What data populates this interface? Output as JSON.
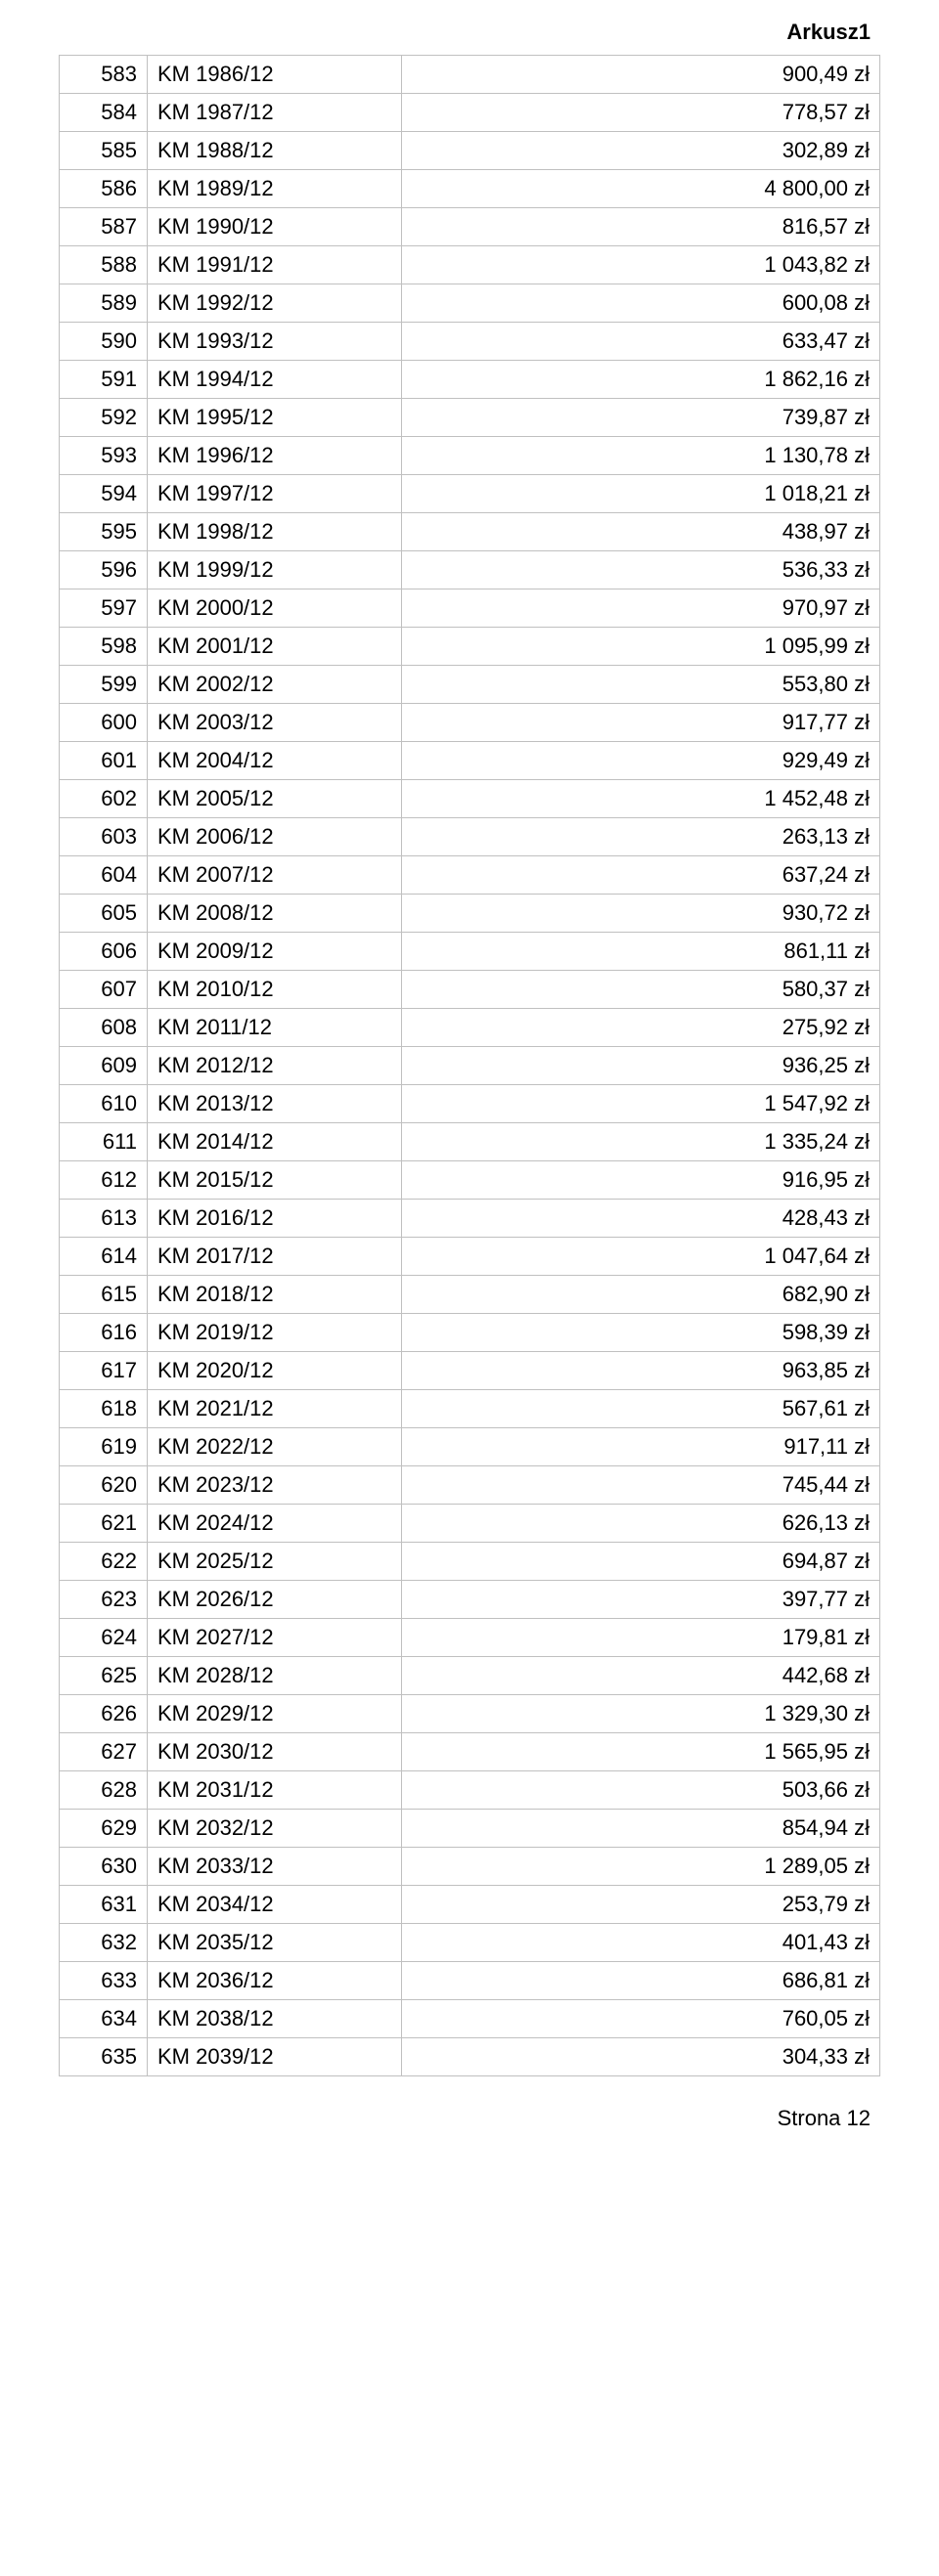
{
  "header_title": "Arkusz1",
  "footer_text": "Strona 12",
  "colors": {
    "text": "#000000",
    "border": "#c0c0c0",
    "background": "#ffffff"
  },
  "fontsize": 22,
  "columns": [
    "index",
    "code",
    "amount"
  ],
  "rows": [
    [
      "583",
      "KM 1986/12",
      "900,49 zł"
    ],
    [
      "584",
      "KM 1987/12",
      "778,57 zł"
    ],
    [
      "585",
      "KM 1988/12",
      "302,89 zł"
    ],
    [
      "586",
      "KM 1989/12",
      "4 800,00 zł"
    ],
    [
      "587",
      "KM 1990/12",
      "816,57 zł"
    ],
    [
      "588",
      "KM 1991/12",
      "1 043,82 zł"
    ],
    [
      "589",
      "KM 1992/12",
      "600,08 zł"
    ],
    [
      "590",
      "KM 1993/12",
      "633,47 zł"
    ],
    [
      "591",
      "KM 1994/12",
      "1 862,16 zł"
    ],
    [
      "592",
      "KM 1995/12",
      "739,87 zł"
    ],
    [
      "593",
      "KM 1996/12",
      "1 130,78 zł"
    ],
    [
      "594",
      "KM 1997/12",
      "1 018,21 zł"
    ],
    [
      "595",
      "KM 1998/12",
      "438,97 zł"
    ],
    [
      "596",
      "KM 1999/12",
      "536,33 zł"
    ],
    [
      "597",
      "KM 2000/12",
      "970,97 zł"
    ],
    [
      "598",
      "KM 2001/12",
      "1 095,99 zł"
    ],
    [
      "599",
      "KM 2002/12",
      "553,80 zł"
    ],
    [
      "600",
      "KM 2003/12",
      "917,77 zł"
    ],
    [
      "601",
      "KM 2004/12",
      "929,49 zł"
    ],
    [
      "602",
      "KM 2005/12",
      "1 452,48 zł"
    ],
    [
      "603",
      "KM 2006/12",
      "263,13 zł"
    ],
    [
      "604",
      "KM 2007/12",
      "637,24 zł"
    ],
    [
      "605",
      "KM 2008/12",
      "930,72 zł"
    ],
    [
      "606",
      "KM 2009/12",
      "861,11 zł"
    ],
    [
      "607",
      "KM 2010/12",
      "580,37 zł"
    ],
    [
      "608",
      "KM 2011/12",
      "275,92 zł"
    ],
    [
      "609",
      "KM 2012/12",
      "936,25 zł"
    ],
    [
      "610",
      "KM 2013/12",
      "1 547,92 zł"
    ],
    [
      "611",
      "KM 2014/12",
      "1 335,24 zł"
    ],
    [
      "612",
      "KM 2015/12",
      "916,95 zł"
    ],
    [
      "613",
      "KM 2016/12",
      "428,43 zł"
    ],
    [
      "614",
      "KM 2017/12",
      "1 047,64 zł"
    ],
    [
      "615",
      "KM 2018/12",
      "682,90 zł"
    ],
    [
      "616",
      "KM 2019/12",
      "598,39 zł"
    ],
    [
      "617",
      "KM 2020/12",
      "963,85 zł"
    ],
    [
      "618",
      "KM 2021/12",
      "567,61 zł"
    ],
    [
      "619",
      "KM 2022/12",
      "917,11 zł"
    ],
    [
      "620",
      "KM 2023/12",
      "745,44 zł"
    ],
    [
      "621",
      "KM 2024/12",
      "626,13 zł"
    ],
    [
      "622",
      "KM 2025/12",
      "694,87 zł"
    ],
    [
      "623",
      "KM 2026/12",
      "397,77 zł"
    ],
    [
      "624",
      "KM 2027/12",
      "179,81 zł"
    ],
    [
      "625",
      "KM 2028/12",
      "442,68 zł"
    ],
    [
      "626",
      "KM 2029/12",
      "1 329,30 zł"
    ],
    [
      "627",
      "KM 2030/12",
      "1 565,95 zł"
    ],
    [
      "628",
      "KM 2031/12",
      "503,66 zł"
    ],
    [
      "629",
      "KM 2032/12",
      "854,94 zł"
    ],
    [
      "630",
      "KM 2033/12",
      "1 289,05 zł"
    ],
    [
      "631",
      "KM 2034/12",
      "253,79 zł"
    ],
    [
      "632",
      "KM 2035/12",
      "401,43 zł"
    ],
    [
      "633",
      "KM 2036/12",
      "686,81 zł"
    ],
    [
      "634",
      "KM 2038/12",
      "760,05 zł"
    ],
    [
      "635",
      "KM 2039/12",
      "304,33 zł"
    ]
  ]
}
